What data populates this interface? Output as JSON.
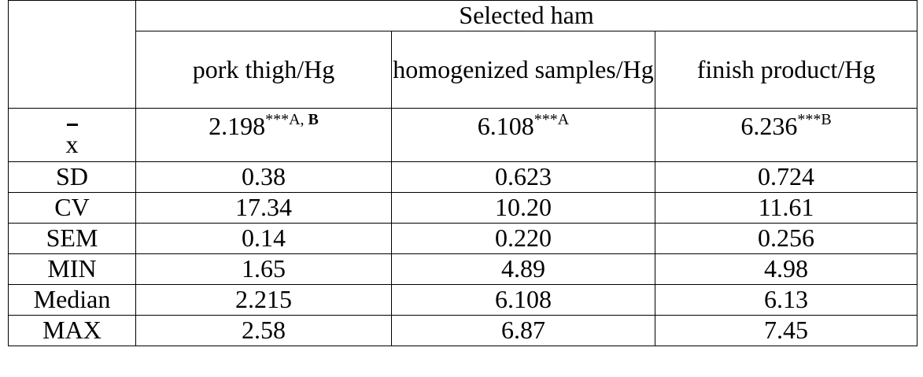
{
  "table": {
    "group_header": "Selected ham",
    "columns": [
      "pork thigh/Hg",
      "homogenized samples/Hg",
      "finish product/Hg"
    ],
    "mean_row": {
      "label": "x",
      "cells": [
        {
          "value": "2.198",
          "sup": "***A,",
          "sup_bold": "B"
        },
        {
          "value": "6.108",
          "sup": "***A",
          "sup_bold": ""
        },
        {
          "value": "6.236",
          "sup": "***B",
          "sup_bold": ""
        }
      ]
    },
    "rows": [
      {
        "label": "SD",
        "values": [
          "0.38",
          "0.623",
          "0.724"
        ]
      },
      {
        "label": "CV",
        "values": [
          "17.34",
          "10.20",
          "11.61"
        ]
      },
      {
        "label": "SEM",
        "values": [
          "0.14",
          "0.220",
          "0.256"
        ]
      },
      {
        "label": "MIN",
        "values": [
          "1.65",
          "4.89",
          "4.98"
        ]
      },
      {
        "label": "Median",
        "values": [
          "2.215",
          "6.108",
          "6.13"
        ]
      },
      {
        "label": "MAX",
        "values": [
          "2.58",
          "6.87",
          "7.45"
        ]
      }
    ]
  }
}
